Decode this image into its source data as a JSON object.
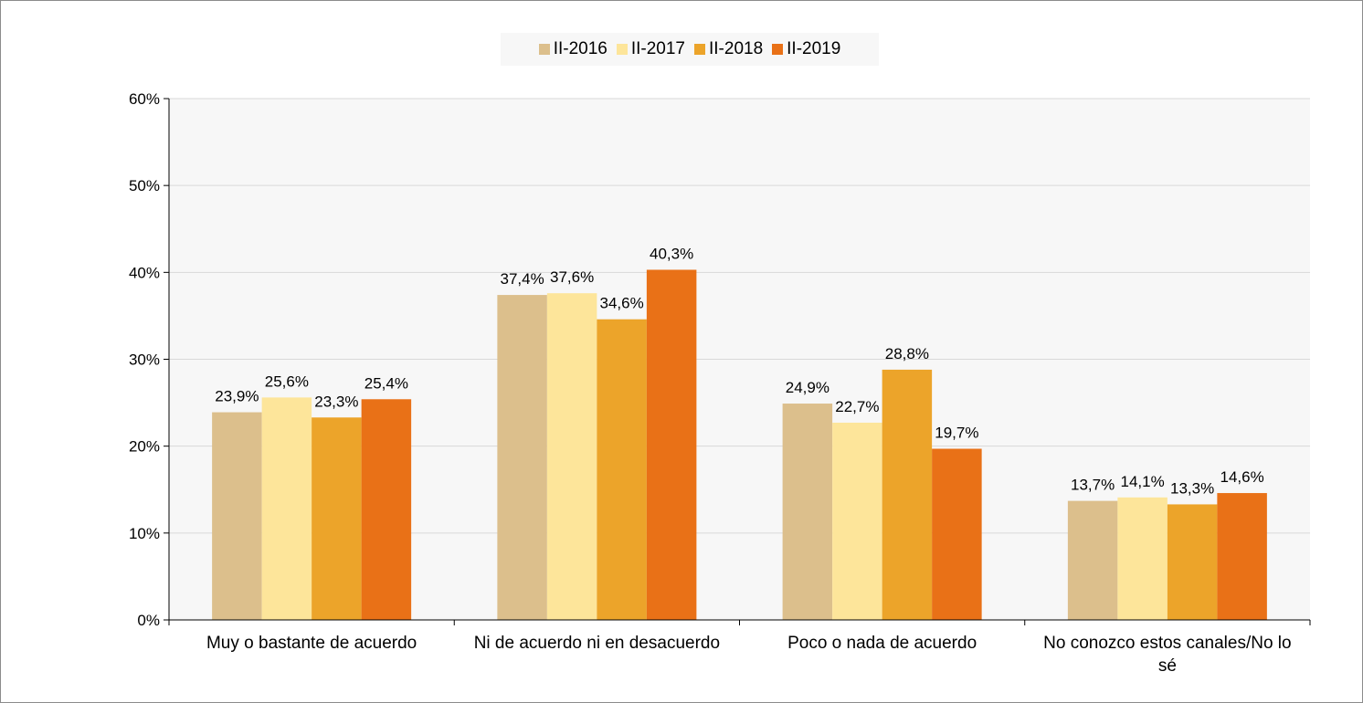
{
  "chart_data": {
    "type": "bar",
    "categories": [
      [
        "Muy o bastante de acuerdo"
      ],
      [
        "Ni de acuerdo ni en desacuerdo"
      ],
      [
        "Poco o nada de acuerdo"
      ],
      [
        "No conozco estos canales/No lo",
        "sé"
      ]
    ],
    "series": [
      {
        "name": "II-2016",
        "color": "#dcbf8c",
        "values": [
          23.9,
          37.4,
          24.9,
          13.7
        ],
        "labels": [
          "23,9%",
          "37,4%",
          "24,9%",
          "13,7%"
        ]
      },
      {
        "name": "II-2017",
        "color": "#fde59a",
        "values": [
          25.6,
          37.6,
          22.7,
          14.1
        ],
        "labels": [
          "25,6%",
          "37,6%",
          "22,7%",
          "14,1%"
        ]
      },
      {
        "name": "II-2018",
        "color": "#eca42a",
        "values": [
          23.3,
          34.6,
          28.8,
          13.3
        ],
        "labels": [
          "23,3%",
          "34,6%",
          "28,8%",
          "13,3%"
        ]
      },
      {
        "name": "II-2019",
        "color": "#e97117",
        "values": [
          25.4,
          40.3,
          19.7,
          14.6
        ],
        "labels": [
          "25,4%",
          "40,3%",
          "19,7%",
          "14,6%"
        ]
      }
    ],
    "ylim": [
      0,
      60
    ],
    "yticks": [
      0,
      10,
      20,
      30,
      40,
      50,
      60
    ],
    "ytick_labels": [
      "0%",
      "10%",
      "20%",
      "30%",
      "40%",
      "50%",
      "60%"
    ],
    "grid": true,
    "legend_position": "top",
    "plot_background": "#f7f7f7",
    "grid_color": "#d9d9d9"
  }
}
